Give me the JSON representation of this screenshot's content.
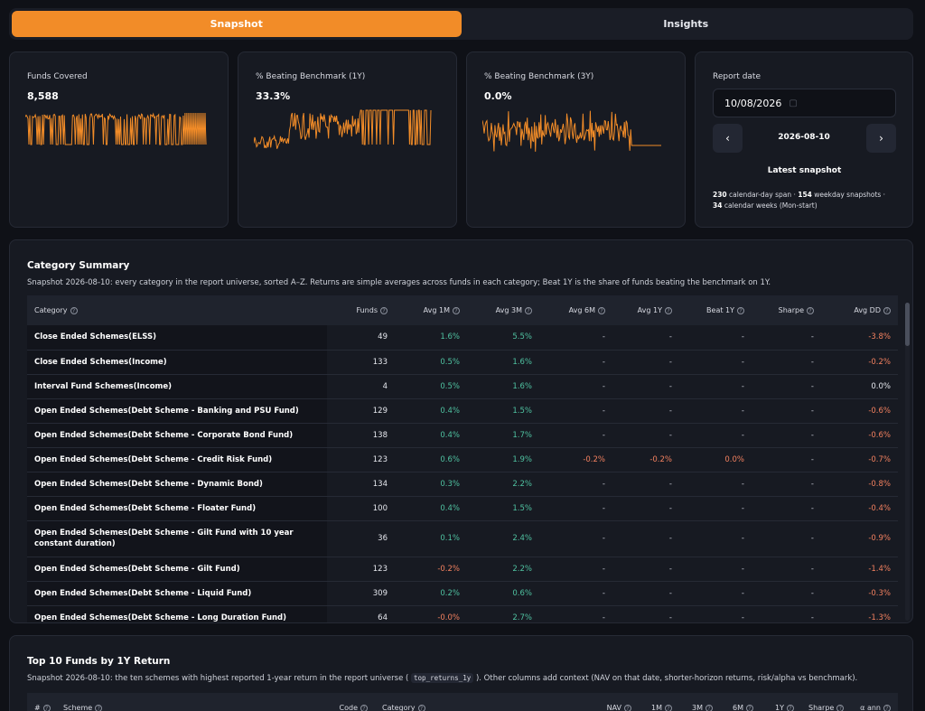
{
  "tabs": [
    {
      "label": "Snapshot",
      "active": true
    },
    {
      "label": "Insights",
      "active": false
    }
  ],
  "cards": [
    {
      "label": "Funds Covered",
      "value": "8,588",
      "color": "#f28c28"
    },
    {
      "label": "% Beating Benchmark (1Y)",
      "value": "33.3%",
      "color": "#f28c28"
    },
    {
      "label": "% Beating Benchmark (3Y)",
      "value": "0.0%",
      "color": "#f28c28"
    }
  ],
  "report": {
    "label": "Report date",
    "date_input": "10/08/2026",
    "current_date": "2026-08-10",
    "prev_icon": "chevron-left-icon",
    "next_icon": "chevron-right-icon",
    "status": "Latest snapshot",
    "span_days": "230",
    "span_days_text": "calendar-day span ·",
    "weekday_snapshots": "154",
    "weekday_text": "weekday snapshots ·",
    "weeks": "34",
    "weeks_text": "calendar weeks (Mon-start)"
  },
  "category_summary": {
    "title": "Category Summary",
    "description": "Snapshot 2026-08-10: every category in the report universe, sorted A–Z. Returns are simple averages across funds in each category; Beat 1Y is the share of funds beating the benchmark on 1Y.",
    "columns": [
      "Category",
      "Funds",
      "Avg 1M",
      "Avg 3M",
      "Avg 6M",
      "Avg 1Y",
      "Beat 1Y",
      "Sharpe",
      "Avg DD"
    ],
    "rows": [
      {
        "category": "Close Ended Schemes(ELSS)",
        "funds": "49",
        "avg1m": "1.6%",
        "avg3m": "5.5%",
        "avg6m": "-",
        "avg1y": "-",
        "beat1y": "-",
        "sharpe": "-",
        "avgdd": "-3.8%"
      },
      {
        "category": "Close Ended Schemes(Income)",
        "funds": "133",
        "avg1m": "0.5%",
        "avg3m": "1.6%",
        "avg6m": "-",
        "avg1y": "-",
        "beat1y": "-",
        "sharpe": "-",
        "avgdd": "-0.2%"
      },
      {
        "category": "Interval Fund Schemes(Income)",
        "funds": "4",
        "avg1m": "0.5%",
        "avg3m": "1.6%",
        "avg6m": "-",
        "avg1y": "-",
        "beat1y": "-",
        "sharpe": "-",
        "avgdd": "0.0%"
      },
      {
        "category": "Open Ended Schemes(Debt Scheme - Banking and PSU Fund)",
        "funds": "129",
        "avg1m": "0.4%",
        "avg3m": "1.5%",
        "avg6m": "-",
        "avg1y": "-",
        "beat1y": "-",
        "sharpe": "-",
        "avgdd": "-0.6%"
      },
      {
        "category": "Open Ended Schemes(Debt Scheme - Corporate Bond Fund)",
        "funds": "138",
        "avg1m": "0.4%",
        "avg3m": "1.7%",
        "avg6m": "-",
        "avg1y": "-",
        "beat1y": "-",
        "sharpe": "-",
        "avgdd": "-0.6%"
      },
      {
        "category": "Open Ended Schemes(Debt Scheme - Credit Risk Fund)",
        "funds": "123",
        "avg1m": "0.6%",
        "avg3m": "1.9%",
        "avg6m": "-0.2%",
        "avg1y": "-0.2%",
        "beat1y": "0.0%",
        "sharpe": "-",
        "avgdd": "-0.7%"
      },
      {
        "category": "Open Ended Schemes(Debt Scheme - Dynamic Bond)",
        "funds": "134",
        "avg1m": "0.3%",
        "avg3m": "2.2%",
        "avg6m": "-",
        "avg1y": "-",
        "beat1y": "-",
        "sharpe": "-",
        "avgdd": "-0.8%"
      },
      {
        "category": "Open Ended Schemes(Debt Scheme - Floater Fund)",
        "funds": "100",
        "avg1m": "0.4%",
        "avg3m": "1.5%",
        "avg6m": "-",
        "avg1y": "-",
        "beat1y": "-",
        "sharpe": "-",
        "avgdd": "-0.4%"
      },
      {
        "category": "Open Ended Schemes(Debt Scheme - Gilt Fund with 10 year constant duration)",
        "funds": "36",
        "avg1m": "0.1%",
        "avg3m": "2.4%",
        "avg6m": "-",
        "avg1y": "-",
        "beat1y": "-",
        "sharpe": "-",
        "avgdd": "-0.9%"
      },
      {
        "category": "Open Ended Schemes(Debt Scheme - Gilt Fund)",
        "funds": "123",
        "avg1m": "-0.2%",
        "avg3m": "2.2%",
        "avg6m": "-",
        "avg1y": "-",
        "beat1y": "-",
        "sharpe": "-",
        "avgdd": "-1.4%"
      },
      {
        "category": "Open Ended Schemes(Debt Scheme - Liquid Fund)",
        "funds": "309",
        "avg1m": "0.2%",
        "avg3m": "0.6%",
        "avg6m": "-",
        "avg1y": "-",
        "beat1y": "-",
        "sharpe": "-",
        "avgdd": "-0.3%"
      },
      {
        "category": "Open Ended Schemes(Debt Scheme - Long Duration Fund)",
        "funds": "64",
        "avg1m": "-0.0%",
        "avg3m": "2.7%",
        "avg6m": "-",
        "avg1y": "-",
        "beat1y": "-",
        "sharpe": "-",
        "avgdd": "-1.3%"
      }
    ]
  },
  "top_funds": {
    "title": "Top 10 Funds by 1Y Return",
    "desc_prefix": "Snapshot 2026-08-10: the ten schemes with highest reported 1-year return in the report universe (",
    "desc_code": "top_returns_1y",
    "desc_suffix": "). Other columns add context (NAV on that date, shorter-horizon returns, risk/alpha vs benchmark).",
    "columns": [
      "#",
      "Scheme",
      "Code",
      "Category",
      "NAV",
      "1M",
      "3M",
      "6M",
      "1Y",
      "Sharpe",
      "α ann"
    ]
  }
}
